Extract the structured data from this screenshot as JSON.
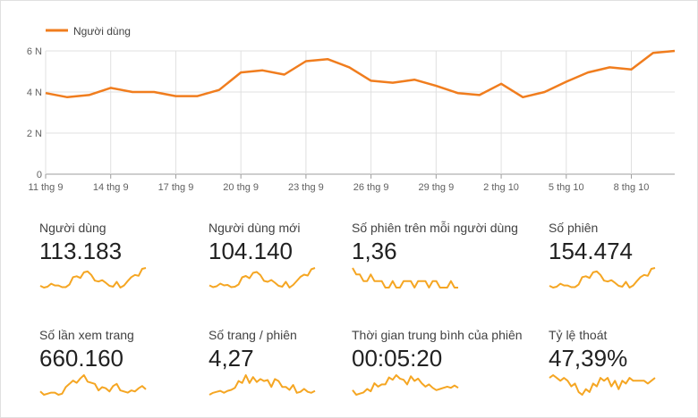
{
  "colors": {
    "accent": "#f07d1e",
    "spark": "#f5a623",
    "grid": "#e0e0e0",
    "axis": "#616161"
  },
  "chart_data": {
    "type": "line",
    "legend": {
      "placement": "top-left",
      "label": "Người dùng"
    },
    "series": [
      {
        "name": "Người dùng",
        "values": [
          3.95,
          3.75,
          3.85,
          4.2,
          4.0,
          4.0,
          3.8,
          3.8,
          4.1,
          4.95,
          5.05,
          4.85,
          5.5,
          5.6,
          5.2,
          4.55,
          4.45,
          4.6,
          4.3,
          3.95,
          3.85,
          4.4,
          3.75,
          4.0,
          4.5,
          4.95,
          5.2,
          5.1,
          5.9,
          6.0
        ]
      }
    ],
    "x_tick_labels": [
      "11 thg 9",
      "14 thg 9",
      "17 thg 9",
      "20 thg 9",
      "23 thg 9",
      "26 thg 9",
      "29 thg 9",
      "2 thg 10",
      "5 thg 10",
      "8 thg 10"
    ],
    "y_tick_labels": [
      "0",
      "2 N",
      "4 N",
      "6 N"
    ],
    "y_ticks": [
      0,
      2,
      4,
      6
    ],
    "ylim": [
      0,
      6
    ],
    "grid": true
  },
  "metrics": [
    {
      "label": "Người dùng",
      "value": "113.183",
      "spark": [
        3.95,
        3.75,
        3.85,
        4.2,
        4.0,
        4.0,
        3.8,
        3.8,
        4.1,
        4.95,
        5.05,
        4.85,
        5.5,
        5.6,
        5.2,
        4.55,
        4.45,
        4.6,
        4.3,
        3.95,
        3.85,
        4.4,
        3.75,
        4.0,
        4.5,
        4.95,
        5.2,
        5.1,
        5.9,
        6.0
      ]
    },
    {
      "label": "Người dùng mới",
      "value": "104.140",
      "spark": [
        3.9,
        3.7,
        3.8,
        4.1,
        3.9,
        3.95,
        3.7,
        3.75,
        4.0,
        4.8,
        4.95,
        4.7,
        5.3,
        5.4,
        5.05,
        4.4,
        4.3,
        4.5,
        4.2,
        3.85,
        3.75,
        4.3,
        3.65,
        3.95,
        4.4,
        4.85,
        5.1,
        5.0,
        5.7,
        5.85
      ]
    },
    {
      "label": "Số phiên trên mỗi người dùng",
      "value": "1,36",
      "spark": [
        1.38,
        1.37,
        1.37,
        1.36,
        1.36,
        1.37,
        1.36,
        1.36,
        1.36,
        1.35,
        1.35,
        1.36,
        1.35,
        1.35,
        1.36,
        1.36,
        1.36,
        1.35,
        1.36,
        1.36,
        1.36,
        1.35,
        1.36,
        1.36,
        1.35,
        1.35,
        1.35,
        1.36,
        1.35,
        1.35
      ]
    },
    {
      "label": "Số phiên",
      "value": "154.474",
      "spark": [
        3.95,
        3.75,
        3.85,
        4.2,
        4.0,
        4.0,
        3.8,
        3.8,
        4.1,
        4.95,
        5.05,
        4.85,
        5.5,
        5.6,
        5.2,
        4.55,
        4.45,
        4.6,
        4.3,
        3.95,
        3.85,
        4.4,
        3.75,
        4.0,
        4.5,
        4.95,
        5.2,
        5.1,
        5.9,
        6.0
      ]
    },
    {
      "label": "Số lần xem trang",
      "value": "660.160",
      "spark": [
        3.9,
        3.6,
        3.7,
        3.8,
        3.8,
        3.6,
        3.7,
        4.3,
        4.6,
        4.9,
        4.7,
        5.1,
        5.4,
        4.8,
        4.7,
        4.6,
        4.0,
        4.3,
        4.2,
        3.9,
        4.4,
        4.6,
        4.0,
        3.9,
        3.8,
        4.0,
        3.9,
        4.2,
        4.4,
        4.1
      ]
    },
    {
      "label": "Số trang / phiên",
      "value": "4,27",
      "spark": [
        4.2,
        4.22,
        4.23,
        4.24,
        4.22,
        4.24,
        4.25,
        4.27,
        4.34,
        4.32,
        4.4,
        4.32,
        4.38,
        4.33,
        4.36,
        4.34,
        4.35,
        4.28,
        4.36,
        4.34,
        4.28,
        4.28,
        4.25,
        4.3,
        4.22,
        4.23,
        4.26,
        4.23,
        4.22,
        4.24
      ]
    },
    {
      "label": "Thời gian trung bình của phiên",
      "value": "00:05:20",
      "spark": [
        5.0,
        4.6,
        4.7,
        4.8,
        5.1,
        4.9,
        5.6,
        5.3,
        5.5,
        5.5,
        6.1,
        5.9,
        6.3,
        6.0,
        5.9,
        5.5,
        6.2,
        5.8,
        6.0,
        5.6,
        5.3,
        5.5,
        5.2,
        5.0,
        5.1,
        5.2,
        5.3,
        5.2,
        5.4,
        5.2
      ]
    },
    {
      "label": "Tỷ lệ thoát",
      "value": "47,39%",
      "spark": [
        47.6,
        47.7,
        47.6,
        47.5,
        47.6,
        47.5,
        47.3,
        47.4,
        47.1,
        47.0,
        47.2,
        47.1,
        47.4,
        47.3,
        47.6,
        47.5,
        47.6,
        47.3,
        47.5,
        47.2,
        47.5,
        47.4,
        47.6,
        47.5,
        47.5,
        47.5,
        47.5,
        47.4,
        47.5,
        47.6
      ]
    }
  ]
}
